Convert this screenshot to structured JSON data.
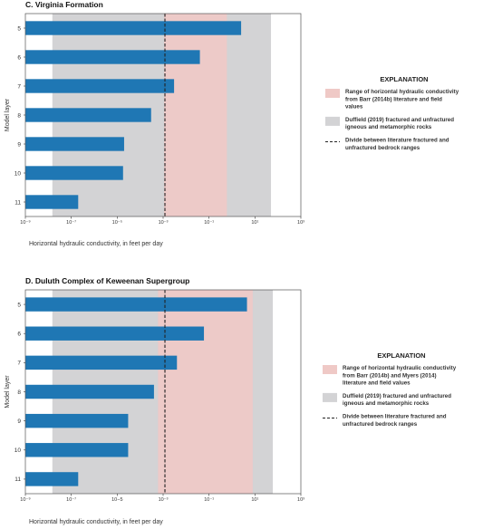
{
  "chart_data": [
    {
      "type": "bar",
      "orientation": "horizontal",
      "title": "C. Virginia Formation",
      "xlabel": "Horizontal hydraulic conductivity, in feet per day",
      "ylabel": "Model layer",
      "x_scale": "log",
      "xlim": [
        1e-09,
        1000.0
      ],
      "x_tick_values": [
        1e-09,
        1e-07,
        1e-05,
        0.001,
        0.1,
        10.0,
        1000.0
      ],
      "x_tick_labels": [
        "10⁻⁹",
        "10⁻⁷",
        "10⁻⁵",
        "10⁻³",
        "10⁻¹",
        "10¹",
        "10³"
      ],
      "categories": [
        "5",
        "6",
        "7",
        "8",
        "9",
        "10",
        "11"
      ],
      "values": [
        2.5,
        0.04,
        0.003,
        0.0003,
        2e-05,
        1.8e-05,
        2e-07
      ],
      "bar_color": "#1f77b4",
      "ranges": {
        "gray": {
          "from": 1.5e-08,
          "to": 50,
          "color": "#d3d3d5"
        },
        "pink": {
          "from": 0.0011,
          "to": 0.6,
          "color": "#efc9c6"
        },
        "divide": 0.0012
      },
      "legend": {
        "position": "right",
        "title": "EXPLANATION",
        "items": [
          {
            "kind": "pink",
            "text": [
              "Range of horizontal hydraulic conductivity",
              "from Barr (2014b) literature and field",
              "values"
            ]
          },
          {
            "kind": "gray",
            "text": [
              "Duffield (2019) fractured and unfractured",
              "igneous and metamorphic rocks"
            ]
          },
          {
            "kind": "dash",
            "text": [
              "Divide between literature fractured and",
              "unfractured bedrock ranges"
            ]
          }
        ]
      }
    },
    {
      "type": "bar",
      "orientation": "horizontal",
      "title": "D. Duluth Complex of Keweenan Supergroup",
      "xlabel": "Horizontal hydraulic conductivity, in feet per day",
      "ylabel": "Model layer",
      "x_scale": "log",
      "xlim": [
        1e-09,
        1000.0
      ],
      "x_tick_values": [
        1e-09,
        1e-07,
        1e-05,
        0.001,
        0.1,
        10.0,
        1000.0
      ],
      "x_tick_labels": [
        "10⁻⁹",
        "10⁻⁷",
        "10−5",
        "10⁻³",
        "10⁻¹",
        "10¹",
        "10³"
      ],
      "categories": [
        "5",
        "6",
        "7",
        "8",
        "9",
        "10",
        "11"
      ],
      "values": [
        4.5,
        0.06,
        0.004,
        0.0004,
        3e-05,
        3e-05,
        2e-07
      ],
      "bar_color": "#1f77b4",
      "ranges": {
        "gray": {
          "from": 1.5e-08,
          "to": 60,
          "color": "#d3d3d5"
        },
        "pink": {
          "from": 0.0006,
          "to": 8,
          "color": "#efc9c6"
        },
        "divide": 0.0012
      },
      "legend": {
        "position": "right",
        "title": "EXPLANATION",
        "items": [
          {
            "kind": "pink",
            "text": [
              "Range of horizontal hydraulic conductivity",
              "from Barr (2014b) and Myers (2014)",
              "literature and field values"
            ]
          },
          {
            "kind": "gray",
            "text": [
              "Duffield (2019) fractured and unfractured",
              "igneous and metamorphic rocks"
            ]
          },
          {
            "kind": "dash",
            "text": [
              "Divide between literature fractured and",
              "unfractured bedrock ranges"
            ]
          }
        ]
      }
    }
  ]
}
